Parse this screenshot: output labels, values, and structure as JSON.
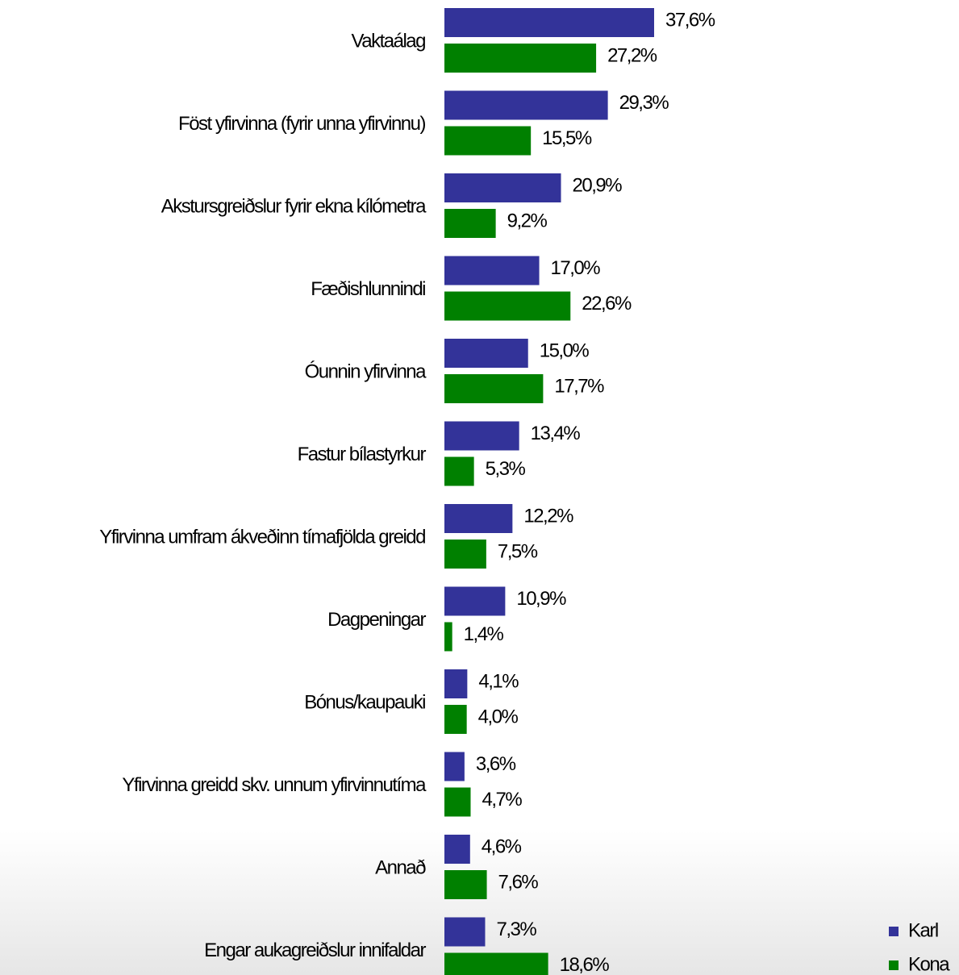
{
  "chart_data": {
    "type": "bar",
    "orientation": "horizontal",
    "categories": [
      "Vaktaálag",
      "Föst yfirvinna (fyrir unna yfirvinnu)",
      "Akstursgreiðslur fyrir ekna kílómetra",
      "Fæðishlunnindi",
      "Óunnin yfirvinna",
      "Fastur bílastyrkur",
      "Yfirvinna umfram ákveðinn tímafjölda greidd",
      "Dagpeningar",
      "Bónus/kaupauki",
      "Yfirvinna greidd skv. unnum yfirvinnutíma",
      "Annað",
      "Engar aukagreiðslur innifaldar"
    ],
    "series": [
      {
        "name": "Karl",
        "color": "#333399",
        "values": [
          37.6,
          29.3,
          20.9,
          17.0,
          15.0,
          13.4,
          12.2,
          10.9,
          4.1,
          3.6,
          4.6,
          7.3
        ],
        "value_labels": [
          "37,6%",
          "29,3%",
          "20,9%",
          "17,0%",
          "15,0%",
          "13,4%",
          "12,2%",
          "10,9%",
          "4,1%",
          "3,6%",
          "4,6%",
          "7,3%"
        ]
      },
      {
        "name": "Kona",
        "color": "#008000",
        "values": [
          27.2,
          15.5,
          9.2,
          22.6,
          17.7,
          5.3,
          7.5,
          1.4,
          4.0,
          4.7,
          7.6,
          18.6
        ],
        "value_labels": [
          "27,2%",
          "15,5%",
          "9,2%",
          "22,6%",
          "17,7%",
          "5,3%",
          "7,5%",
          "1,4%",
          "4,0%",
          "4,7%",
          "7,6%",
          "18,6%"
        ]
      }
    ],
    "xlim": [
      0,
      90
    ],
    "legend": "bottom-right"
  }
}
